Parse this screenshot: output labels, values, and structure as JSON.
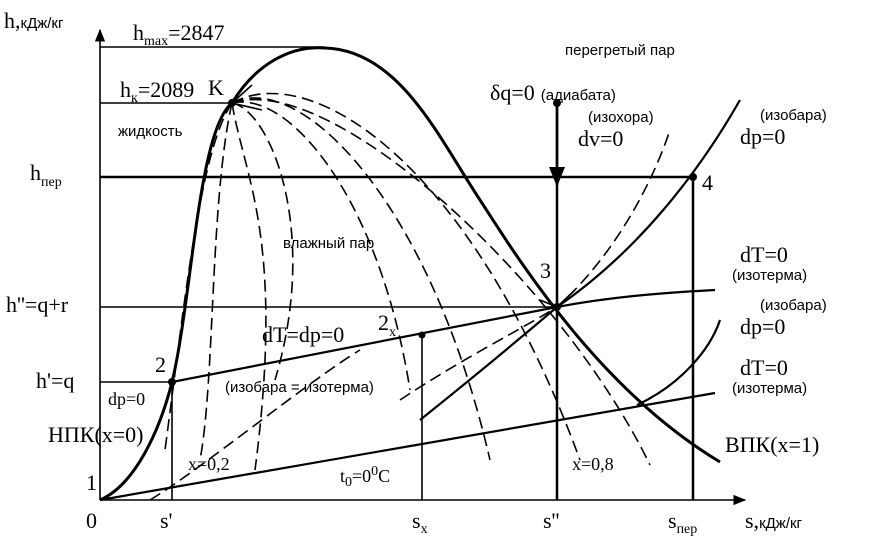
{
  "axes": {
    "y_main": "h,",
    "y_unit": "кДж/кг",
    "x_main": "s,",
    "x_unit": "кДж/кг",
    "origin": "0"
  },
  "levels": {
    "hmax": [
      "h",
      "max",
      "=2847"
    ],
    "hk": [
      "h",
      "к",
      "=2089"
    ],
    "hper": [
      "h",
      "пер"
    ],
    "h2": "h''=q+r",
    "h1": "h'=q"
  },
  "s_ticks": {
    "s1": "s'",
    "sx": [
      "s",
      "x"
    ],
    "s2": "s''",
    "sper": [
      "s",
      "пер"
    ]
  },
  "points": {
    "K": "K",
    "p0": "1",
    "p2": "2",
    "p2x": [
      "2",
      "x"
    ],
    "p3": "3",
    "p4": "4"
  },
  "regions": {
    "liquid": "жидкость",
    "wet": "влажный пар",
    "superheated": "перегретый пар"
  },
  "curves": {
    "dp0_left": "dp=0",
    "npk": "НПК(x=0)",
    "x02": "x=0,2",
    "x08": "x=0,8",
    "vpk": "ВПК(x=1)",
    "t0": [
      "t",
      "0",
      "=0",
      "0",
      "C"
    ],
    "dTdp": "dT=dp=0",
    "isobar_isotherm": "(изобара = изотерма)",
    "adiabat": [
      "δq=0",
      "(адиабата)"
    ],
    "isochore": [
      "(изохора)",
      "dv=0"
    ],
    "isobar_top": [
      "(изобара)",
      "dp=0"
    ],
    "isotherm1": [
      "dT=0",
      "(изотерма)"
    ],
    "isobar_mid": [
      "(изобара)",
      "dp=0"
    ],
    "isotherm2": [
      "dT=0",
      "(изотерма)"
    ]
  }
}
